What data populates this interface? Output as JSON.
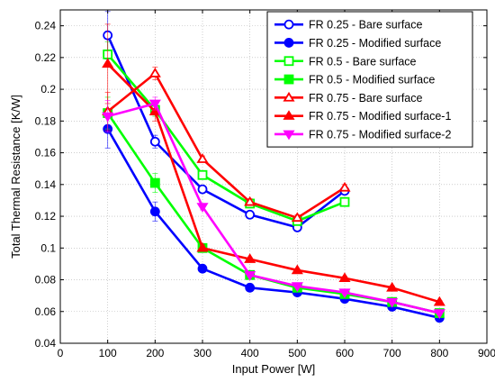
{
  "chart_data": {
    "type": "line",
    "title": "",
    "xlabel": "Input Power [W]",
    "ylabel": "Total Thermal Resistance [K/W]",
    "xlim": [
      0,
      900
    ],
    "ylim": [
      0.04,
      0.25
    ],
    "xticks": [
      0,
      100,
      200,
      300,
      400,
      500,
      600,
      700,
      800,
      900
    ],
    "yticks": [
      0.04,
      0.06,
      0.08,
      0.1,
      0.12,
      0.14,
      0.16,
      0.18,
      0.2,
      0.22,
      0.24
    ],
    "xtick_labels": [
      "0",
      "100",
      "200",
      "300",
      "400",
      "500",
      "600",
      "700",
      "800",
      "900"
    ],
    "ytick_labels": [
      "0.04",
      "0.06",
      "0.08",
      "0.1",
      "0.12",
      "0.14",
      "0.16",
      "0.18",
      "0.2",
      "0.22",
      "0.24"
    ],
    "grid": true,
    "legend_position": "top-right",
    "series": [
      {
        "name": "FR 0.25 - Bare surface",
        "color": "#0000ff",
        "marker": "circle-open",
        "x": [
          100,
          200,
          300,
          400,
          500,
          600
        ],
        "y": [
          0.234,
          0.167,
          0.137,
          0.121,
          0.113,
          0.136
        ],
        "err": [
          0.015,
          0.004,
          0.002,
          0.002,
          0.002,
          0.002
        ]
      },
      {
        "name": "FR 0.25 - Modified surface",
        "color": "#0000ff",
        "marker": "circle-filled",
        "x": [
          100,
          200,
          300,
          400,
          500,
          600,
          700,
          800
        ],
        "y": [
          0.175,
          0.123,
          0.087,
          0.075,
          0.072,
          0.068,
          0.063,
          0.056
        ],
        "err": [
          0.012,
          0.006,
          0.002,
          0.001,
          0.001,
          0.001,
          0.001,
          0.001
        ]
      },
      {
        "name": "FR 0.5 - Bare surface",
        "color": "#00ff00",
        "marker": "square-open",
        "x": [
          100,
          200,
          300,
          400,
          500,
          600
        ],
        "y": [
          0.222,
          0.187,
          0.146,
          0.128,
          0.117,
          0.129
        ],
        "err": [
          0.008,
          0.004,
          0.002,
          0.002,
          0.002,
          0.002
        ]
      },
      {
        "name": "FR 0.5 - Modified surface",
        "color": "#00ff00",
        "marker": "square-filled",
        "x": [
          100,
          200,
          300,
          400,
          500,
          600,
          700,
          800
        ],
        "y": [
          0.185,
          0.141,
          0.1,
          0.083,
          0.075,
          0.071,
          0.066,
          0.059
        ],
        "err": [
          0.01,
          0.006,
          0.002,
          0.001,
          0.001,
          0.001,
          0.001,
          0.001
        ]
      },
      {
        "name": "FR 0.75 - Bare surface",
        "color": "#ff0000",
        "marker": "triangle-open",
        "x": [
          100,
          200,
          300,
          400,
          500,
          600
        ],
        "y": [
          0.186,
          0.21,
          0.156,
          0.129,
          0.119,
          0.138
        ],
        "err": [
          0.012,
          0.004,
          0.002,
          0.002,
          0.002,
          0.002
        ]
      },
      {
        "name": "FR 0.75 - Modified surface-1",
        "color": "#ff0000",
        "marker": "triangle-filled",
        "x": [
          100,
          200,
          300,
          400,
          500,
          600,
          700,
          800
        ],
        "y": [
          0.216,
          0.186,
          0.1,
          0.093,
          0.086,
          0.081,
          0.075,
          0.066
        ],
        "err": [
          0.025,
          0.006,
          0.002,
          0.001,
          0.001,
          0.001,
          0.001,
          0.001
        ]
      },
      {
        "name": "FR 0.75 - Modified surface-2",
        "color": "#ff00ff",
        "marker": "triangle-down-filled",
        "x": [
          100,
          200,
          300,
          400,
          500,
          600,
          700,
          800
        ],
        "y": [
          0.183,
          0.191,
          0.126,
          0.083,
          0.076,
          0.072,
          0.066,
          0.059
        ],
        "err": [
          0.01,
          0.004,
          0.002,
          0.001,
          0.001,
          0.001,
          0.001,
          0.001
        ]
      }
    ]
  }
}
